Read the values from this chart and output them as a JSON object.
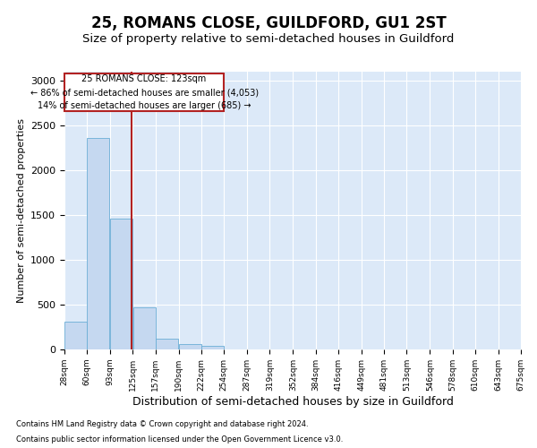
{
  "title1": "25, ROMANS CLOSE, GUILDFORD, GU1 2ST",
  "title2": "Size of property relative to semi-detached houses in Guildford",
  "xlabel": "Distribution of semi-detached houses by size in Guildford",
  "ylabel": "Number of semi-detached properties",
  "footer1": "Contains HM Land Registry data © Crown copyright and database right 2024.",
  "footer2": "Contains public sector information licensed under the Open Government Licence v3.0.",
  "annotation_line1": "25 ROMANS CLOSE: 123sqm",
  "annotation_line2": "← 86% of semi-detached houses are smaller (4,053)",
  "annotation_line3": "14% of semi-detached houses are larger (685) →",
  "property_size": 123,
  "bin_edges": [
    28,
    60,
    93,
    125,
    157,
    190,
    222,
    254,
    287,
    319,
    352,
    384,
    416,
    449,
    481,
    513,
    546,
    578,
    610,
    643,
    675
  ],
  "bar_heights": [
    310,
    2360,
    1460,
    475,
    125,
    60,
    45,
    0,
    0,
    0,
    0,
    0,
    0,
    0,
    0,
    0,
    0,
    0,
    0,
    0
  ],
  "bar_color": "#c5d8f0",
  "bar_edge_color": "#6baed6",
  "marker_color": "#b22222",
  "ylim": [
    0,
    3100
  ],
  "yticks": [
    0,
    500,
    1000,
    1500,
    2000,
    2500,
    3000
  ],
  "background_color": "#dce9f8",
  "grid_color": "#ffffff",
  "title1_fontsize": 12,
  "title2_fontsize": 9.5,
  "xlabel_fontsize": 9,
  "ylabel_fontsize": 8
}
